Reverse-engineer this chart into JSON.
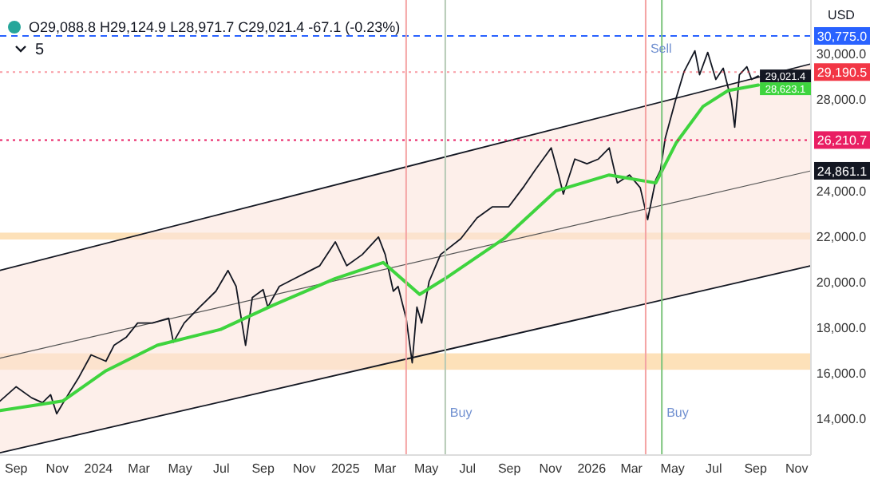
{
  "chart_data": {
    "type": "line",
    "title": "O29,088.8 H29,124.9 L28,971.7 C29,021.4 -67.1 (-0.23%)",
    "ylabel": "USD",
    "xlim": [
      "2023-08-08",
      "2026-11-22"
    ],
    "ylim": [
      12400,
      32350
    ],
    "xticks": [
      {
        "value": "2023-09-01",
        "label": "Sep"
      },
      {
        "value": "2023-11-01",
        "label": "Nov"
      },
      {
        "value": "2024-01-01",
        "label": "2024"
      },
      {
        "value": "2024-03-01",
        "label": "Mar"
      },
      {
        "value": "2024-05-01",
        "label": "May"
      },
      {
        "value": "2024-07-01",
        "label": "Jul"
      },
      {
        "value": "2024-09-01",
        "label": "Sep"
      },
      {
        "value": "2024-11-01",
        "label": "Nov"
      },
      {
        "value": "2025-01-01",
        "label": "2025"
      },
      {
        "value": "2025-03-01",
        "label": "Mar"
      },
      {
        "value": "2025-05-01",
        "label": "May"
      },
      {
        "value": "2025-07-01",
        "label": "Jul"
      },
      {
        "value": "2025-09-01",
        "label": "Sep"
      },
      {
        "value": "2025-11-01",
        "label": "Nov"
      },
      {
        "value": "2026-01-01",
        "label": "2026"
      },
      {
        "value": "2026-03-01",
        "label": "Mar"
      },
      {
        "value": "2026-05-01",
        "label": "May"
      },
      {
        "value": "2026-07-01",
        "label": "Jul"
      },
      {
        "value": "2026-09-01",
        "label": "Sep"
      },
      {
        "value": "2026-11-01",
        "label": "Nov"
      }
    ],
    "yticks": [
      {
        "value": 14000,
        "label": "14,000.0"
      },
      {
        "value": 16000,
        "label": "16,000.0"
      },
      {
        "value": 18000,
        "label": "18,000.0"
      },
      {
        "value": 20000,
        "label": "20,000.0"
      },
      {
        "value": 22000,
        "label": "22,000.0"
      },
      {
        "value": 24000,
        "label": "24,000.0"
      },
      {
        "value": 28000,
        "label": "28,000.0"
      },
      {
        "value": 30000,
        "label": "30,000.0"
      }
    ],
    "grid": false,
    "marker": "none",
    "series": [
      {
        "type": "line",
        "color": "#555555",
        "x": [
          "2023-08-08",
          "2026-11-22"
        ],
        "values": [
          16650,
          24861.1
        ],
        "lower": [
          12500,
          20700
        ],
        "upper": [
          20500,
          29550
        ],
        "value_labels": [
          null,
          "24,861.1"
        ]
      },
      {
        "type": "line",
        "color": "#131722",
        "x": [
          "2023-08-08",
          "2026-11-22"
        ],
        "values": [
          20500,
          29550
        ]
      },
      {
        "type": "line",
        "color": "#131722",
        "x": [
          "2023-08-08",
          "2026-11-22"
        ],
        "values": [
          12500,
          20700
        ]
      },
      {
        "color": "#131722",
        "x": [
          "2023-08-08",
          "2023-09-01",
          "2023-09-24",
          "2023-10-10",
          "2023-10-22",
          "2023-10-31",
          "2023-11-14",
          "2023-12-03",
          "2023-12-21",
          "2024-01-12",
          "2024-01-24",
          "2024-02-11",
          "2024-02-28",
          "2024-03-21",
          "2024-04-14",
          "2024-04-21",
          "2024-05-07",
          "2024-05-30",
          "2024-06-23",
          "2024-07-11",
          "2024-07-23",
          "2024-08-06",
          "2024-08-16",
          "2024-09-01",
          "2024-09-08",
          "2024-09-25",
          "2024-10-18",
          "2024-11-10",
          "2024-11-24",
          "2024-12-17",
          "2025-01-03",
          "2025-01-26",
          "2025-02-19",
          "2025-03-01",
          "2025-03-13",
          "2025-03-20",
          "2025-04-01",
          "2025-04-10",
          "2025-04-17",
          "2025-04-24",
          "2025-05-05",
          "2025-05-22",
          "2025-06-21",
          "2025-07-15",
          "2025-08-07",
          "2025-08-31",
          "2025-09-23",
          "2025-10-09",
          "2025-11-02",
          "2025-11-13",
          "2025-11-20",
          "2025-12-07",
          "2025-12-25",
          "2026-01-11",
          "2026-01-27",
          "2026-02-08",
          "2026-02-26",
          "2026-03-14",
          "2026-03-25",
          "2026-04-06",
          "2026-04-13",
          "2026-04-20",
          "2026-05-06",
          "2026-05-18",
          "2026-06-03",
          "2026-06-10",
          "2026-06-22",
          "2026-07-04",
          "2026-07-15",
          "2026-07-27",
          "2026-08-01",
          "2026-08-08",
          "2026-08-19",
          "2026-08-26",
          "2026-09-05"
        ],
        "values": [
          14768,
          15396,
          14907,
          14698,
          15047,
          14209,
          14907,
          15815,
          16792,
          16513,
          17211,
          17560,
          18188,
          18188,
          18397,
          17350,
          18188,
          18886,
          19584,
          20491,
          19793,
          17211,
          19305,
          19654,
          18886,
          19793,
          20142,
          20491,
          20701,
          21748,
          20701,
          21189,
          21957,
          21189,
          19584,
          19793,
          18397,
          16443,
          18886,
          18188,
          20003,
          21189,
          21887,
          22795,
          23283,
          23283,
          24191,
          24889,
          25866,
          24679,
          23842,
          25377,
          25168,
          25377,
          25866,
          24330,
          24679,
          24121,
          22725,
          24470,
          24889,
          26285,
          28030,
          29216,
          30124,
          29077,
          30054,
          28867,
          29356,
          27960,
          26773,
          29077,
          29426,
          28867,
          29021.4
        ],
        "value_labels": [
          null,
          null,
          null,
          null,
          null,
          null,
          null,
          null,
          null,
          null,
          null,
          null,
          null,
          null,
          null,
          null,
          null,
          null,
          null,
          null,
          null,
          null,
          null,
          null,
          null,
          null,
          null,
          null,
          null,
          null,
          null,
          null,
          null,
          null,
          null,
          null,
          null,
          null,
          null,
          null,
          null,
          null,
          null,
          null,
          null,
          null,
          null,
          null,
          null,
          null,
          null,
          null,
          null,
          null,
          null,
          null,
          null,
          null,
          null,
          null,
          null,
          null,
          null,
          null,
          null,
          null,
          null,
          null,
          null,
          null,
          null,
          null,
          null,
          null,
          "29,021.4"
        ]
      },
      {
        "color": "#3ed43e",
        "x": [
          "2023-08-08",
          "2023-11-09",
          "2024-01-12",
          "2024-03-28",
          "2024-06-30",
          "2024-09-15",
          "2024-12-17",
          "2025-02-26",
          "2025-04-21",
          "2025-05-29",
          "2025-08-24",
          "2025-11-09",
          "2026-01-27",
          "2026-04-06",
          "2026-05-06",
          "2026-06-15",
          "2026-07-22",
          "2026-09-05"
        ],
        "values": [
          14349,
          14768,
          16094,
          17211,
          17909,
          18956,
          20142,
          20840,
          19444,
          20142,
          21887,
          23981,
          24679,
          24330,
          26075,
          27681,
          28379,
          28623.1
        ],
        "value_labels": [
          null,
          null,
          null,
          null,
          null,
          null,
          null,
          null,
          null,
          null,
          null,
          null,
          null,
          null,
          null,
          null,
          null,
          "28,623.1"
        ]
      }
    ],
    "ref_lines": [
      {
        "axis": "y",
        "value": 30775,
        "label": "30,775.0",
        "color": "#2962ff",
        "line_style": "dashed"
      },
      {
        "axis": "y",
        "value": 26210.7,
        "label": "26,210.7",
        "color": "#e91e63",
        "line_style": "dotted"
      },
      {
        "axis": "y",
        "value": 29190.5,
        "label": "29,190.5",
        "color": "#f23645",
        "line_style": "dotted"
      },
      {
        "axis": "x",
        "value": "2025-04-01",
        "color": "#f4a3a3"
      },
      {
        "axis": "x",
        "value": "2025-05-29",
        "color": "#b5c9b5"
      },
      {
        "axis": "x",
        "value": "2026-03-22",
        "color": "#f4a3a3"
      },
      {
        "axis": "x",
        "value": "2026-04-15",
        "color": "#7cc47c"
      }
    ],
    "bands": [
      {
        "axis": "y",
        "from": 16140,
        "to": 16860,
        "color": "#fdd9a8"
      },
      {
        "axis": "y",
        "from": 21850,
        "to": 22150,
        "color": "#fdd9a8"
      }
    ],
    "annotations": [
      "5",
      {
        "text": "Buy",
        "x": "2025-05-29",
        "y": 14070
      },
      {
        "text": "Buy",
        "x": "2026-04-15",
        "y": 14070
      },
      {
        "text": "Sell",
        "x": "2026-03-22",
        "y": 30054
      }
    ]
  }
}
